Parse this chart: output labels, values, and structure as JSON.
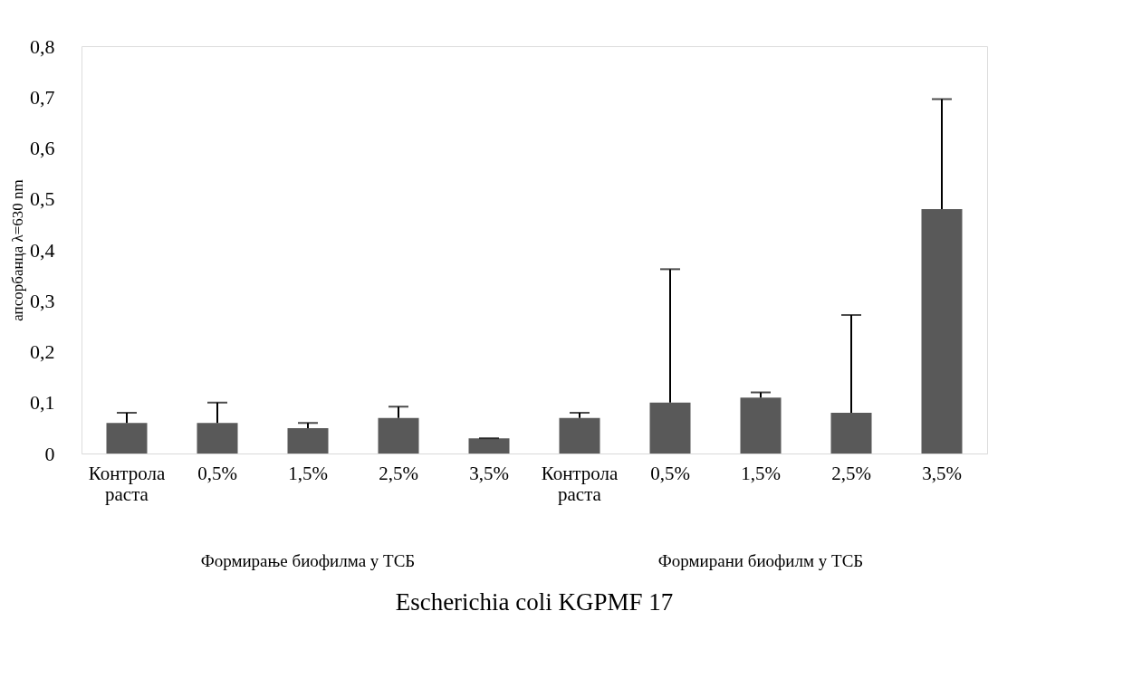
{
  "chart_data": {
    "type": "bar",
    "xlabel": "Escherichia coli KGPMF 17",
    "ylabel": "апсорбанца λ=630 nm",
    "categories": [
      "Контрола раста",
      "0,5%",
      "1,5%",
      "2,5%",
      "3,5%",
      "Контрола раста",
      "0,5%",
      "1,5%",
      "2,5%",
      "3,5%"
    ],
    "values": [
      0.06,
      0.06,
      0.05,
      0.07,
      0.03,
      0.07,
      0.1,
      0.11,
      0.08,
      0.48
    ],
    "errors": [
      [
        0.06,
        0.08
      ],
      [
        0.06,
        0.1
      ],
      [
        0.05,
        0.06
      ],
      [
        0.07,
        0.092
      ],
      [
        0.03,
        0.03
      ],
      [
        0.07,
        0.08
      ],
      [
        0.1,
        0.362
      ],
      [
        0.11,
        0.12
      ],
      [
        0.08,
        0.272
      ],
      [
        0.48,
        0.696
      ]
    ],
    "color": "#595959",
    "ylim": [
      0,
      0.8
    ],
    "yticks": [
      0,
      {
        "value": 0.1,
        "label": "0,1"
      },
      {
        "value": 0.2,
        "label": "0,2"
      },
      {
        "value": 0.3,
        "label": "0,3"
      },
      {
        "value": 0.4,
        "label": "0,4"
      },
      {
        "value": 0.5,
        "label": "0,5"
      },
      {
        "value": 0.6,
        "label": "0,6"
      },
      {
        "value": 0.7,
        "label": "0,7"
      },
      {
        "value": 0.8,
        "label": "0,8"
      }
    ],
    "grid": false,
    "annotations": [
      "Формирање биофилма  у  ТСБ",
      "Формирани биофилм  у  ТСБ"
    ]
  }
}
